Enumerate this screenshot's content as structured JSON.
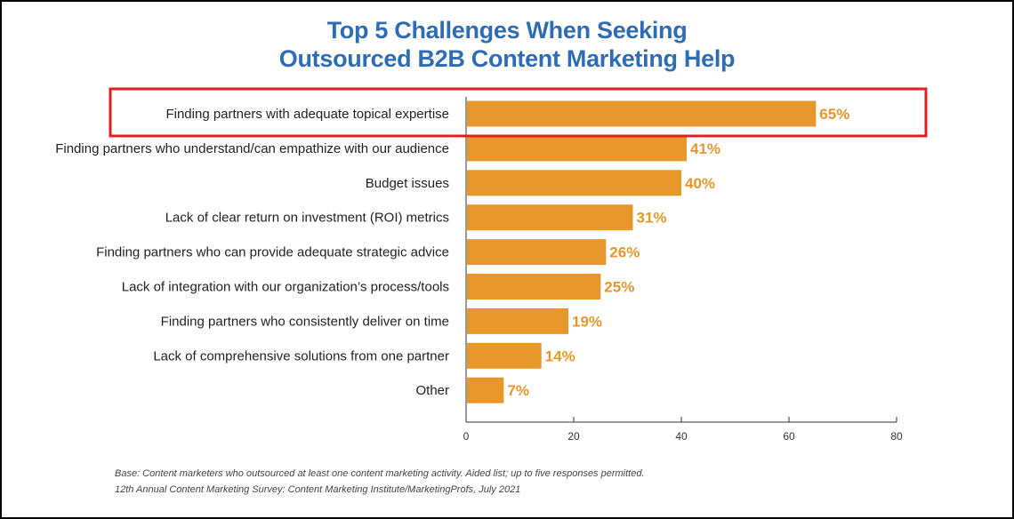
{
  "chart_data": {
    "type": "bar",
    "orientation": "horizontal",
    "title_line1": "Top 5 Challenges When Seeking",
    "title_line2": "Outsourced B2B Content Marketing Help",
    "categories": [
      "Finding partners with adequate topical expertise",
      "Finding partners who understand/can empathize with our audience",
      "Budget issues",
      "Lack of clear return on investment (ROI) metrics",
      "Finding partners who can provide adequate strategic advice",
      "Lack of integration with our organization’s process/tools",
      "Finding partners who consistently deliver on time",
      "Lack of comprehensive solutions from one partner",
      "Other"
    ],
    "values": [
      65,
      41,
      40,
      31,
      26,
      25,
      19,
      14,
      7
    ],
    "value_labels": [
      "65%",
      "41%",
      "40%",
      "31%",
      "26%",
      "25%",
      "19%",
      "14%",
      "7%"
    ],
    "xlim": [
      0,
      80
    ],
    "xticks": [
      0,
      20,
      40,
      60,
      80
    ],
    "xtick_labels": [
      "0",
      "20",
      "40",
      "60",
      "80"
    ],
    "highlighted_category_index": 0,
    "grid": false,
    "colors": {
      "bar": "#e8972a",
      "value_label": "#e8972a",
      "title": "#2e6db4",
      "highlight_box": "#e02020"
    }
  },
  "footnote": {
    "base": "Base: Content marketers who outsourced at least one content marketing activity. Aided list; up to five responses permitted.",
    "source": "12th Annual Content Marketing Survey: Content Marketing Institute/MarketingProfs, July 2021"
  }
}
